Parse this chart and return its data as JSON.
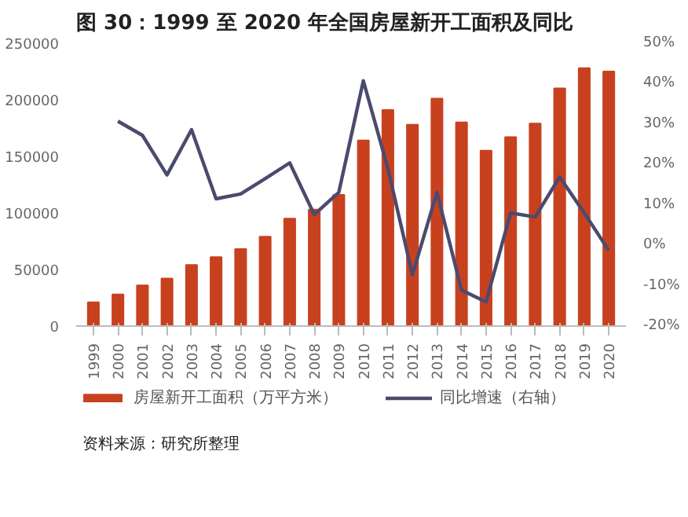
{
  "chart_data": {
    "type": "bar",
    "title": "图 30：1999 至 2020 年全国房屋新开工面积及同比",
    "categories": [
      "1999",
      "2000",
      "2001",
      "2002",
      "2003",
      "2004",
      "2005",
      "2006",
      "2007",
      "2008",
      "2009",
      "2010",
      "2011",
      "2012",
      "2013",
      "2014",
      "2015",
      "2016",
      "2017",
      "2018",
      "2019",
      "2020"
    ],
    "series": [
      {
        "name": "房屋新开工面积（万平方米）",
        "color": "#c8411f",
        "values": [
          21000,
          28000,
          36000,
          42000,
          54000,
          61000,
          68000,
          79000,
          95000,
          103000,
          116000,
          164000,
          191000,
          178000,
          201000,
          180000,
          155000,
          167000,
          179000,
          210000,
          228000,
          225000
        ]
      },
      {
        "name": "同比增速（右轴）",
        "type": "line",
        "axis": "y2",
        "color": "#4b4a6e",
        "values": [
          null,
          30.7,
          27.2,
          17.4,
          28.6,
          11.5,
          12.7,
          16.5,
          20.4,
          7.6,
          13.1,
          40.7,
          19,
          -7.3,
          13.1,
          -11.1,
          -14,
          8,
          7,
          16.9,
          8,
          -1.3
        ]
      }
    ],
    "ylim": [
      0,
      250000
    ],
    "yticks": [
      0,
      50000,
      100000,
      150000,
      200000,
      250000
    ],
    "y2lim": [
      -20,
      50
    ],
    "y2ticks": [
      {
        "value": -20,
        "label": "-20%"
      },
      {
        "value": -10,
        "label": "-10%"
      },
      {
        "value": 0,
        "label": "0%"
      },
      {
        "value": 10,
        "label": "10%"
      },
      {
        "value": 20,
        "label": "20%"
      },
      {
        "value": 30,
        "label": "30%"
      },
      {
        "value": 40,
        "label": "40%"
      },
      {
        "value": 50,
        "label": "50%"
      }
    ],
    "grid": false,
    "legend": "bottom",
    "marker": "none",
    "line_style": "solid",
    "annotations": [
      "资料来源：研究所整理"
    ]
  }
}
